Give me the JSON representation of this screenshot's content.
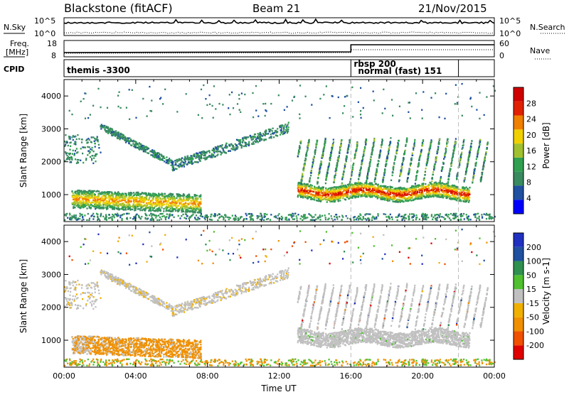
{
  "header": {
    "station": "Blackstone (fitACF)",
    "beam": "Beam 21",
    "date": "21/Nov/2015"
  },
  "top_panels": {
    "nsky": {
      "label": "N.Sky",
      "ticks": [
        "10^5",
        "10^0"
      ],
      "right_label": "N.Search",
      "right_ticks": [
        "10^5",
        "10^0"
      ]
    },
    "freq": {
      "label_lines": [
        "Freq.",
        "[MHz]"
      ],
      "ticks": [
        "18",
        "8"
      ],
      "right_label": "Nave",
      "right_ticks": [
        "60",
        "0"
      ],
      "freq_step": {
        "time_h": 16.0,
        "before": "low",
        "after": "high"
      }
    },
    "cpid": {
      "label": "CPID",
      "entries": [
        {
          "time_h": 0.0,
          "text": "themis -3300"
        },
        {
          "time_h": 16.0,
          "text": "rbsp 200"
        },
        {
          "time_h": 16.0,
          "text": "normal (fast) 151"
        }
      ],
      "boundaries_h": [
        16.0,
        22.0
      ]
    }
  },
  "chart_data": [
    {
      "type": "heatmap",
      "name": "power-panel",
      "ylabel": "Slant Range [km]",
      "xlim": [
        0,
        24
      ],
      "ylim": [
        180,
        4500
      ],
      "yticks": [
        1000,
        2000,
        3000,
        4000
      ],
      "colorbar": {
        "label": "Power [dB]",
        "ticks": [
          "28",
          "24",
          "20",
          "16",
          "12",
          "8",
          "4"
        ],
        "colors": [
          "#0000ff",
          "#2050a0",
          "#3a8a60",
          "#30a050",
          "#a0c030",
          "#f0d000",
          "#f08000",
          "#e02000",
          "#d00000"
        ]
      },
      "features": [
        {
          "desc": "band",
          "t0": 0.4,
          "t1": 7.6,
          "range_km": [
            650,
            1250
          ],
          "peak_dB": 22
        },
        {
          "desc": "band",
          "t0": 13.0,
          "t1": 22.0,
          "range_km": [
            900,
            1300
          ],
          "peak_dB": 28
        },
        {
          "desc": "scatter-arc",
          "t0": 0.0,
          "t1": 12.0,
          "range_km": [
            1800,
            3300
          ],
          "peak_dB": 8
        }
      ]
    },
    {
      "type": "heatmap",
      "name": "velocity-panel",
      "ylabel": "Slant Range [km]",
      "xlabel": "Time UT",
      "xlim": [
        0,
        24
      ],
      "ylim": [
        180,
        4500
      ],
      "xticks": [
        "00:00",
        "04:00",
        "08:00",
        "12:00",
        "16:00",
        "20:00",
        "00:00"
      ],
      "yticks": [
        1000,
        2000,
        3000,
        4000
      ],
      "colorbar": {
        "label": "Velocity [m s-1]",
        "ticks": [
          "200",
          "100",
          "50",
          "15",
          "-15",
          "-50",
          "-100",
          "-200"
        ],
        "colors": [
          "#e00000",
          "#f05000",
          "#f09000",
          "#f0b000",
          "#c0c0c0",
          "#50c030",
          "#309050",
          "#2050a0",
          "#2030c0"
        ]
      },
      "features": [
        {
          "desc": "band",
          "t0": 0.4,
          "t1": 7.6,
          "range_km": [
            650,
            1300
          ],
          "velocity": -50
        },
        {
          "desc": "band",
          "t0": 13.0,
          "t1": 24.0,
          "range_km": [
            900,
            2600
          ],
          "velocity": 0
        }
      ]
    }
  ]
}
